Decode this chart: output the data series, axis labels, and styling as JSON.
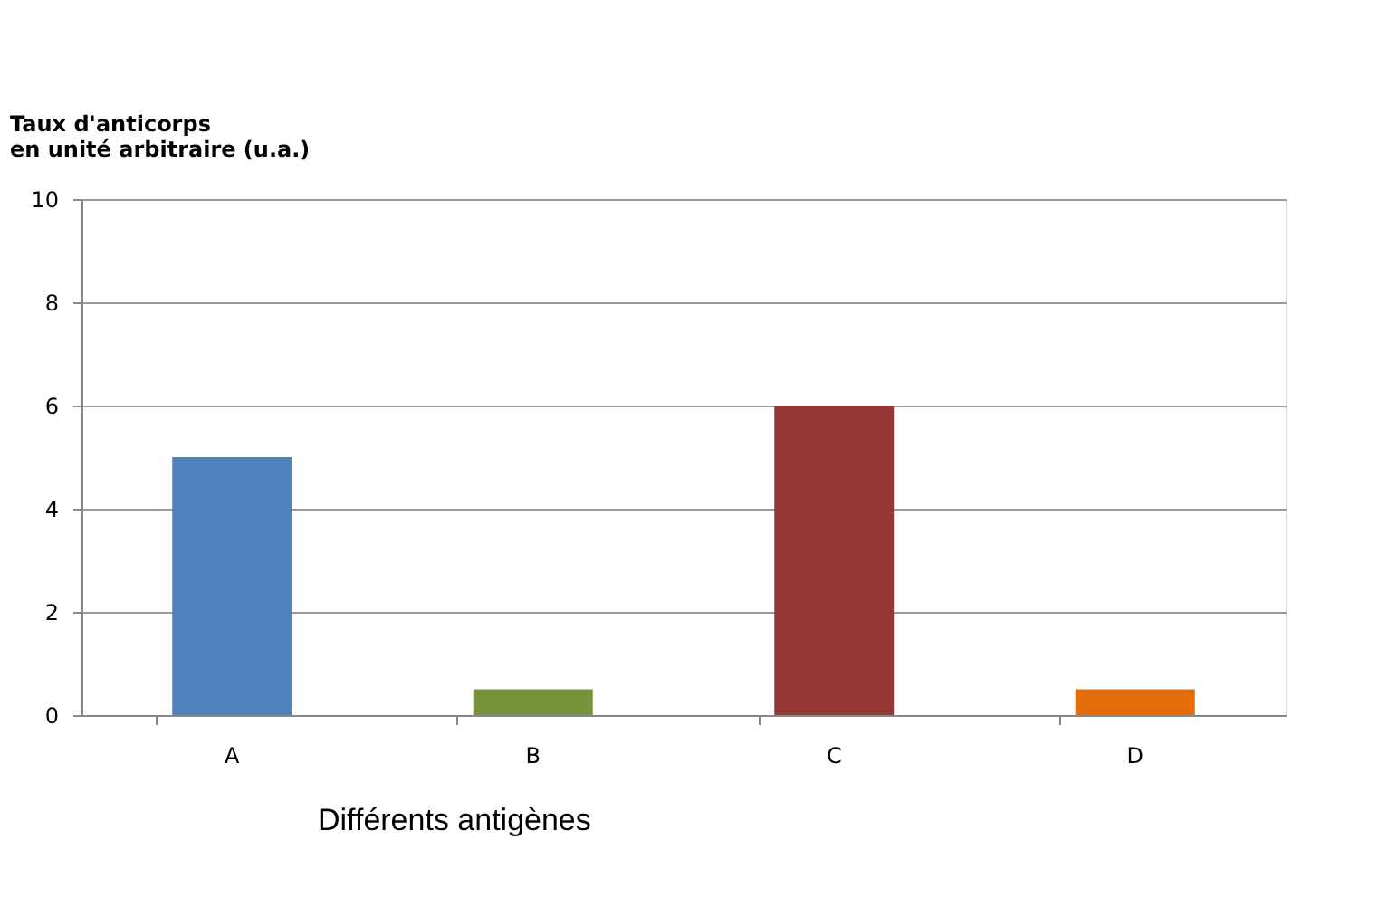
{
  "chart_data": {
    "type": "bar",
    "ylabel": "Taux d'anticorps\nen unité arbitraire (u.a.)",
    "xlabel": "Différents antigènes",
    "categories": [
      "A",
      "B",
      "C",
      "D"
    ],
    "values": [
      5,
      0.5,
      6,
      0.5
    ],
    "colors": [
      "#4f81bd",
      "#77933c",
      "#953735",
      "#e46c0a"
    ],
    "ylim": [
      0,
      10
    ],
    "yticks": [
      0,
      2,
      4,
      6,
      8,
      10
    ],
    "grid": "y",
    "legend": false
  }
}
